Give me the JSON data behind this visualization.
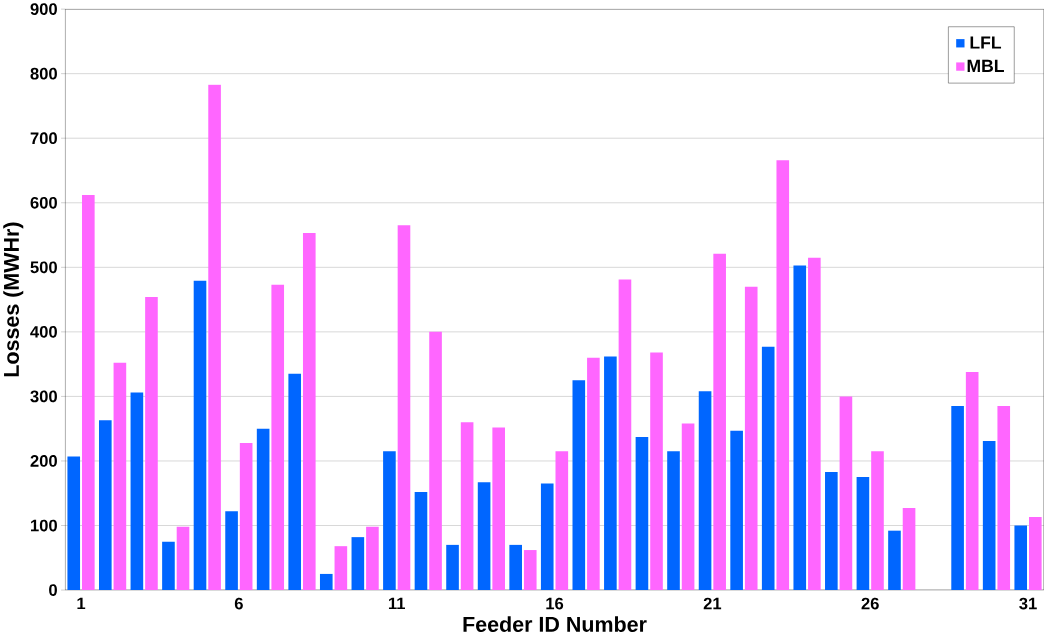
{
  "chart_data": {
    "type": "bar",
    "xlabel": "Feeder ID Number",
    "ylabel": "Losses (MWHr)",
    "categories": [
      "1",
      null,
      null,
      null,
      null,
      "6",
      null,
      null,
      null,
      null,
      "11",
      null,
      null,
      null,
      null,
      "16",
      null,
      null,
      null,
      null,
      "21",
      null,
      null,
      null,
      null,
      "26",
      null,
      null,
      null,
      null,
      "31"
    ],
    "series": [
      {
        "name": "LFL",
        "color": "#0066ff",
        "values": [
          207,
          263,
          306,
          75,
          479,
          122,
          250,
          335,
          25,
          82,
          215,
          152,
          70,
          167,
          70,
          165,
          325,
          362,
          237,
          215,
          308,
          247,
          377,
          503,
          183,
          175,
          92,
          null,
          285,
          231,
          100
        ]
      },
      {
        "name": "MBL",
        "color": "#ff66ff",
        "values": [
          612,
          352,
          454,
          98,
          783,
          228,
          473,
          553,
          68,
          98,
          565,
          400,
          260,
          252,
          62,
          215,
          360,
          481,
          368,
          258,
          521,
          470,
          666,
          515,
          300,
          215,
          127,
          null,
          338,
          285,
          113
        ]
      }
    ],
    "ylim": [
      0,
      900
    ],
    "yticks": [
      0,
      100,
      200,
      300,
      400,
      500,
      600,
      700,
      800,
      900
    ],
    "grid": "y",
    "legend": "top right"
  }
}
